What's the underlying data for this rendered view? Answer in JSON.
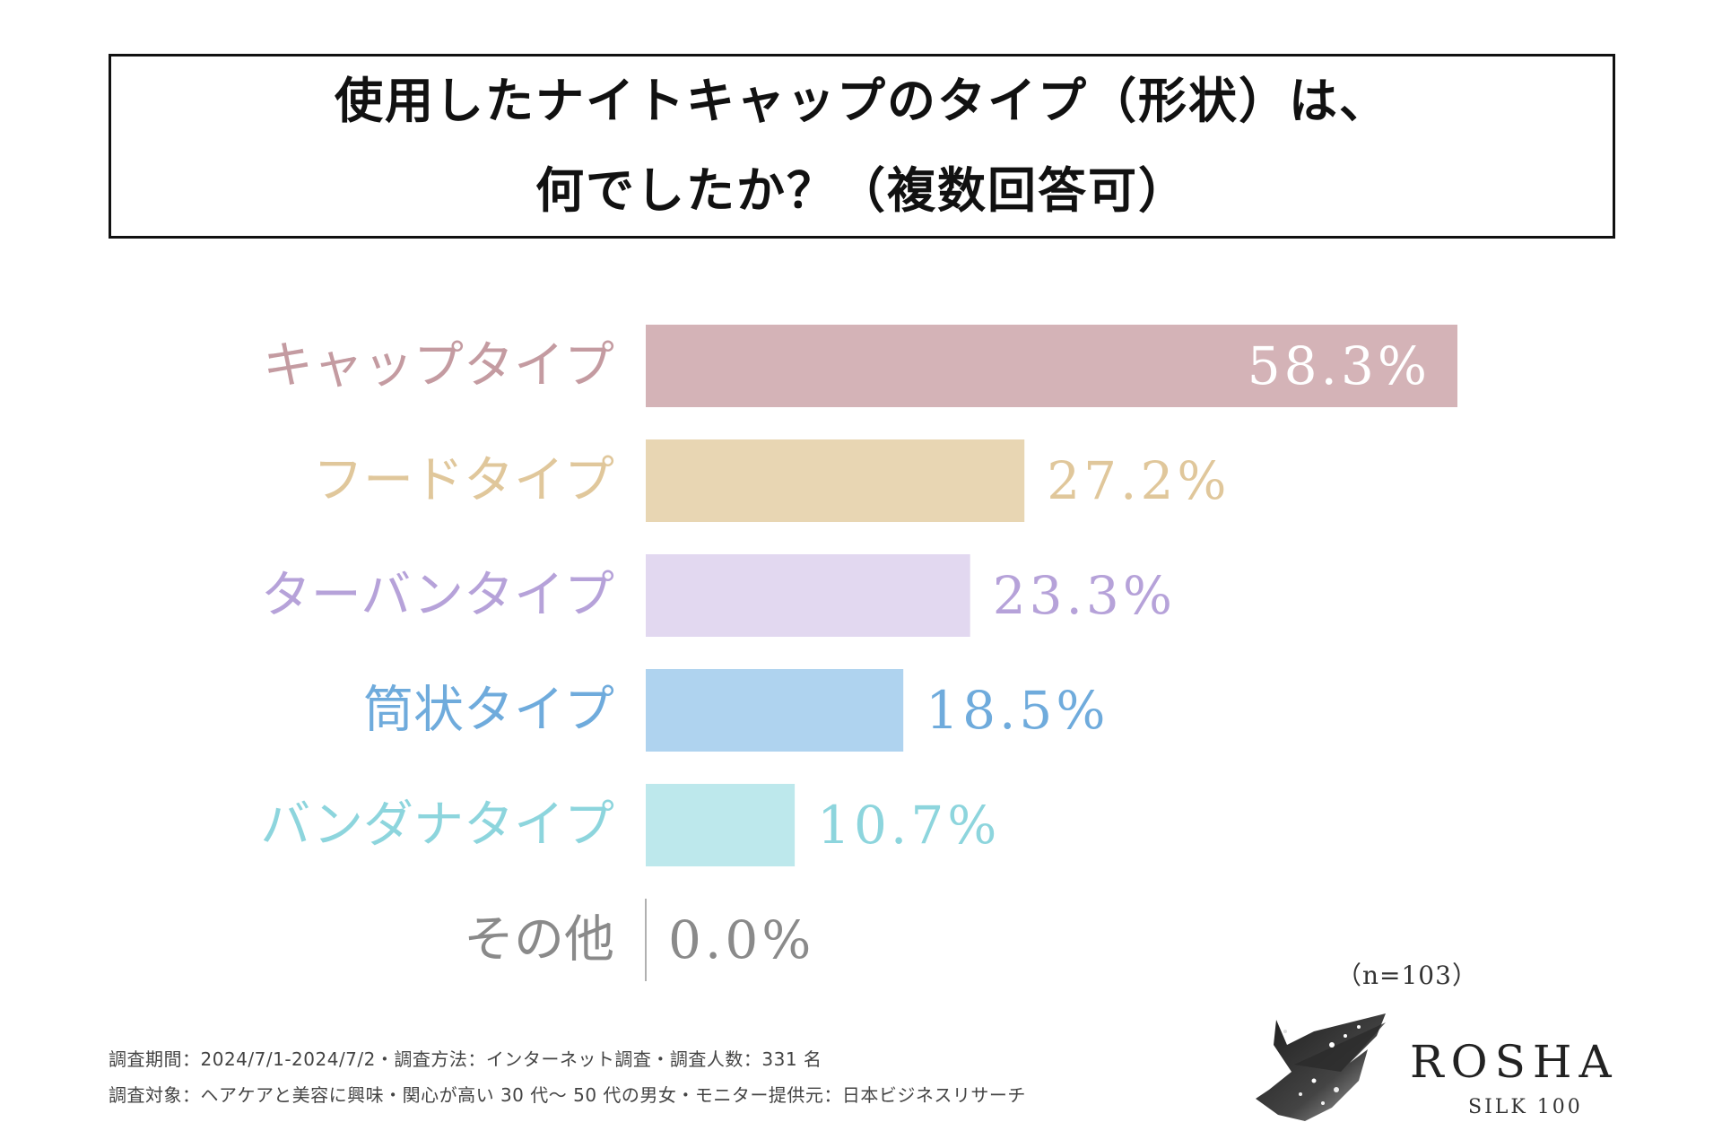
{
  "title": {
    "line1": "使用したナイトキャップのタイプ（形状）は、",
    "line2": "何でしたか？（複数回答可）"
  },
  "chart_data": {
    "type": "bar",
    "orientation": "horizontal",
    "title": "使用したナイトキャップのタイプ（形状）は、何でしたか？（複数回答可）",
    "categories": [
      "キャップタイプ",
      "フードタイプ",
      "ターバンタイプ",
      "筒状タイプ",
      "バンダナタイプ",
      "その他"
    ],
    "values": [
      58.3,
      27.2,
      23.3,
      18.5,
      10.7,
      0.0
    ],
    "value_labels": [
      "58.3%",
      "27.2%",
      "23.3%",
      "18.5%",
      "10.7%",
      "0.0%"
    ],
    "unit": "%",
    "xlim": [
      0,
      58.3
    ],
    "bar_colors": [
      "#d4b3b7",
      "#e8d6b3",
      "#e2d8f0",
      "#afd3ef",
      "#bde8ec",
      "#b0b0b0"
    ],
    "label_colors": [
      "#c49ba1",
      "#e0c79b",
      "#b6a2d9",
      "#6fabdc",
      "#8dd5dd",
      "#8a8a8a"
    ],
    "value_text_colors": [
      "#ffffff",
      "#e0c79b",
      "#b6a2d9",
      "#6fabdc",
      "#8dd5dd",
      "#8a8a8a"
    ],
    "grid": false,
    "legend": "none"
  },
  "sample_size": "（n=103）",
  "footer": {
    "line1": "調査期間：2024/7/1-2024/7/2・調査方法：インターネット調査・調査人数：331 名",
    "line2": "調査対象：ヘアケアと美容に興味・関心が高い 30 代〜 50 代の男女・モニター提供元：日本ビジネスリサーチ"
  },
  "brand": {
    "name": "ROSHA",
    "sub": "SILK 100"
  }
}
